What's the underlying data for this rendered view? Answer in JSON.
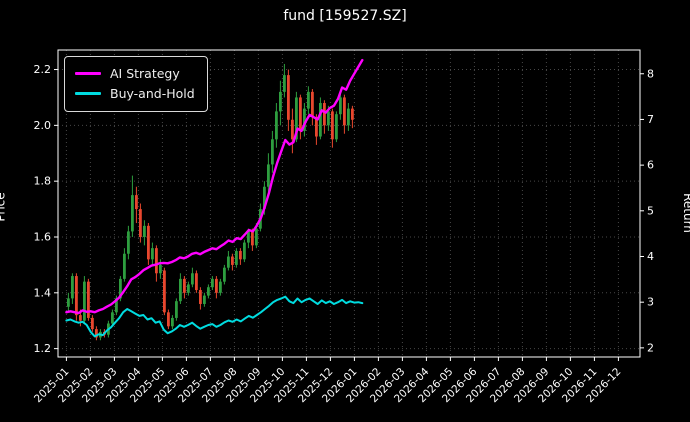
{
  "window": {
    "title": "fund [159527.SZ]"
  },
  "chart_data": {
    "type": "candlestick+line",
    "title": "fund [159527.SZ]",
    "ylabel_left": "Price",
    "ylabel_right": "Return",
    "grid": "dotted",
    "legend_position": "upper-left",
    "x_tick_labels": [
      "2025-01",
      "2025-02",
      "2025-03",
      "2025-04",
      "2025-05",
      "2025-06",
      "2025-07",
      "2025-08",
      "2025-09",
      "2025-10",
      "2025-11",
      "2025-12",
      "2026-01",
      "2026-02",
      "2026-03",
      "2026-04",
      "2026-05",
      "2026-06",
      "2026-07",
      "2026-08",
      "2026-09",
      "2026-10",
      "2026-11",
      "2026-12"
    ],
    "y_ticks_left": [
      1.2,
      1.4,
      1.6,
      1.8,
      2.0,
      2.2
    ],
    "y_ticks_right": [
      2,
      3,
      4,
      5,
      6,
      7,
      8
    ],
    "ylim_left": [
      1.17,
      2.27
    ],
    "ylim_right": [
      1.8,
      8.52
    ],
    "xlim_months": [
      -0.35,
      23.9
    ],
    "colors": {
      "background": "#000000",
      "text": "#ffffff",
      "grid": "rgba(255,255,255,0.28)",
      "up": "#2e9e3f",
      "down": "#e8472e"
    },
    "candles": {
      "months_span": [
        0,
        12
      ],
      "ohlc": [
        [
          1.35,
          1.4,
          1.33,
          1.38
        ],
        [
          1.38,
          1.47,
          1.36,
          1.46
        ],
        [
          1.46,
          1.47,
          1.3,
          1.32
        ],
        [
          1.32,
          1.34,
          1.28,
          1.3
        ],
        [
          1.3,
          1.46,
          1.29,
          1.44
        ],
        [
          1.44,
          1.45,
          1.3,
          1.31
        ],
        [
          1.31,
          1.32,
          1.26,
          1.27
        ],
        [
          1.27,
          1.28,
          1.23,
          1.24
        ],
        [
          1.24,
          1.27,
          1.23,
          1.26
        ],
        [
          1.26,
          1.27,
          1.24,
          1.25
        ],
        [
          1.25,
          1.3,
          1.24,
          1.29
        ],
        [
          1.29,
          1.34,
          1.28,
          1.33
        ],
        [
          1.33,
          1.39,
          1.32,
          1.38
        ],
        [
          1.38,
          1.46,
          1.37,
          1.45
        ],
        [
          1.45,
          1.56,
          1.44,
          1.54
        ],
        [
          1.54,
          1.64,
          1.52,
          1.62
        ],
        [
          1.62,
          1.82,
          1.6,
          1.75
        ],
        [
          1.75,
          1.78,
          1.65,
          1.7
        ],
        [
          1.7,
          1.72,
          1.58,
          1.6
        ],
        [
          1.6,
          1.66,
          1.57,
          1.64
        ],
        [
          1.64,
          1.65,
          1.5,
          1.52
        ],
        [
          1.52,
          1.58,
          1.5,
          1.56
        ],
        [
          1.56,
          1.57,
          1.44,
          1.47
        ],
        [
          1.47,
          1.52,
          1.45,
          1.5
        ],
        [
          1.48,
          1.49,
          1.32,
          1.33
        ],
        [
          1.33,
          1.34,
          1.27,
          1.28
        ],
        [
          1.28,
          1.32,
          1.27,
          1.31
        ],
        [
          1.31,
          1.38,
          1.3,
          1.37
        ],
        [
          1.37,
          1.47,
          1.36,
          1.45
        ],
        [
          1.45,
          1.46,
          1.38,
          1.4
        ],
        [
          1.4,
          1.44,
          1.39,
          1.43
        ],
        [
          1.43,
          1.49,
          1.42,
          1.47
        ],
        [
          1.47,
          1.48,
          1.4,
          1.41
        ],
        [
          1.41,
          1.42,
          1.34,
          1.36
        ],
        [
          1.36,
          1.4,
          1.35,
          1.39
        ],
        [
          1.39,
          1.43,
          1.38,
          1.42
        ],
        [
          1.42,
          1.46,
          1.41,
          1.45
        ],
        [
          1.45,
          1.46,
          1.38,
          1.4
        ],
        [
          1.4,
          1.45,
          1.39,
          1.44
        ],
        [
          1.44,
          1.5,
          1.43,
          1.49
        ],
        [
          1.49,
          1.55,
          1.48,
          1.53
        ],
        [
          1.53,
          1.54,
          1.48,
          1.5
        ],
        [
          1.5,
          1.56,
          1.49,
          1.55
        ],
        [
          1.55,
          1.56,
          1.5,
          1.52
        ],
        [
          1.52,
          1.59,
          1.51,
          1.58
        ],
        [
          1.58,
          1.63,
          1.56,
          1.62
        ],
        [
          1.62,
          1.63,
          1.55,
          1.57
        ],
        [
          1.57,
          1.65,
          1.56,
          1.63
        ],
        [
          1.63,
          1.72,
          1.62,
          1.7
        ],
        [
          1.7,
          1.8,
          1.68,
          1.78
        ],
        [
          1.78,
          1.9,
          1.76,
          1.86
        ],
        [
          1.86,
          1.98,
          1.83,
          1.95
        ],
        [
          1.95,
          2.08,
          1.92,
          2.05
        ],
        [
          2.05,
          2.16,
          2.0,
          2.12
        ],
        [
          2.12,
          2.22,
          2.1,
          2.18
        ],
        [
          2.18,
          2.2,
          1.98,
          2.02
        ],
        [
          2.02,
          2.06,
          1.9,
          1.95
        ],
        [
          1.95,
          2.12,
          1.94,
          2.1
        ],
        [
          2.1,
          2.11,
          1.95,
          1.98
        ],
        [
          1.98,
          2.08,
          1.96,
          2.06
        ],
        [
          2.06,
          2.14,
          2.04,
          2.12
        ],
        [
          2.12,
          2.13,
          2.0,
          2.03
        ],
        [
          2.03,
          2.04,
          1.93,
          1.96
        ],
        [
          1.96,
          2.1,
          1.95,
          2.08
        ],
        [
          2.08,
          2.09,
          1.97,
          2.0
        ],
        [
          2.0,
          2.07,
          1.98,
          2.05
        ],
        [
          2.05,
          2.06,
          1.92,
          1.95
        ],
        [
          1.95,
          2.05,
          1.94,
          2.04
        ],
        [
          2.04,
          2.12,
          2.02,
          2.1
        ],
        [
          2.1,
          2.11,
          1.97,
          2.0
        ],
        [
          2.0,
          2.08,
          1.98,
          2.06
        ],
        [
          2.06,
          2.07,
          1.99,
          2.02
        ]
      ]
    },
    "series": [
      {
        "name": "AI Strategy",
        "color": "#ff00ff",
        "axis": "right",
        "width": 2.4,
        "months_span": [
          0,
          12.33
        ],
        "values": [
          2.78,
          2.8,
          2.78,
          2.76,
          2.82,
          2.79,
          2.8,
          2.78,
          2.82,
          2.85,
          2.9,
          2.95,
          3.02,
          3.1,
          3.22,
          3.35,
          3.5,
          3.55,
          3.62,
          3.7,
          3.75,
          3.8,
          3.82,
          3.85,
          3.86,
          3.85,
          3.88,
          3.92,
          3.98,
          3.96,
          4.0,
          4.06,
          4.08,
          4.05,
          4.1,
          4.14,
          4.18,
          4.16,
          4.22,
          4.28,
          4.35,
          4.32,
          4.4,
          4.38,
          4.48,
          4.58,
          4.55,
          4.68,
          4.85,
          5.1,
          5.4,
          5.75,
          6.05,
          6.3,
          6.55,
          6.45,
          6.5,
          6.8,
          6.75,
          6.95,
          7.1,
          7.05,
          7.0,
          7.2,
          7.15,
          7.25,
          7.3,
          7.45,
          7.7,
          7.65,
          7.85,
          8.0,
          8.15,
          8.3
        ]
      },
      {
        "name": "Buy-and-Hold",
        "color": "#00dce0",
        "axis": "right",
        "width": 2,
        "months_span": [
          0,
          12.33
        ],
        "values": [
          2.6,
          2.62,
          2.58,
          2.55,
          2.57,
          2.5,
          2.35,
          2.25,
          2.3,
          2.28,
          2.38,
          2.45,
          2.55,
          2.65,
          2.78,
          2.85,
          2.8,
          2.75,
          2.7,
          2.72,
          2.62,
          2.65,
          2.55,
          2.58,
          2.4,
          2.32,
          2.36,
          2.42,
          2.5,
          2.46,
          2.5,
          2.55,
          2.48,
          2.42,
          2.46,
          2.5,
          2.52,
          2.46,
          2.5,
          2.56,
          2.6,
          2.57,
          2.62,
          2.58,
          2.64,
          2.7,
          2.66,
          2.72,
          2.78,
          2.85,
          2.92,
          3.0,
          3.05,
          3.08,
          3.12,
          3.02,
          2.98,
          3.08,
          3.0,
          3.05,
          3.08,
          3.02,
          2.96,
          3.04,
          2.98,
          3.02,
          2.96,
          3.0,
          3.05,
          2.98,
          3.02,
          2.99,
          3.0,
          2.98
        ]
      }
    ]
  }
}
